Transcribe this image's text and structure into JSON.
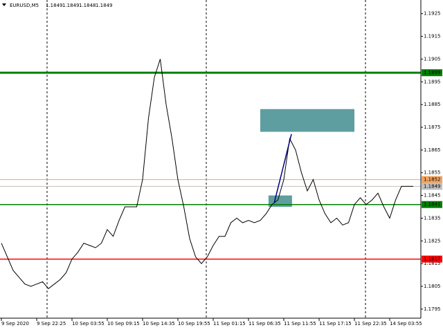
{
  "chart_data": {
    "type": "line",
    "title": "EURUSD,M5",
    "ohlc": [
      1.1849,
      1.1849,
      1.1848,
      1.1849
    ],
    "categories": [
      "9 Sep 2020",
      null,
      null,
      null,
      null,
      null,
      "9 Sep 22:25",
      null,
      null,
      null,
      null,
      null,
      "10 Sep 03:55",
      null,
      null,
      null,
      null,
      null,
      "10 Sep 09:15",
      null,
      null,
      null,
      null,
      null,
      "10 Sep 14:35",
      null,
      null,
      null,
      null,
      null,
      "10 Sep 19:55",
      null,
      null,
      null,
      null,
      null,
      "11 Sep 01:15",
      null,
      null,
      null,
      null,
      null,
      "11 Sep 06:35",
      null,
      null,
      null,
      null,
      null,
      "11 Sep 11:55",
      null,
      null,
      null,
      null,
      null,
      "11 Sep 17:15",
      null,
      null,
      null,
      null,
      null,
      "11 Sep 22:35",
      null,
      null,
      null,
      null,
      null,
      "14 Sep 03:55",
      null,
      null,
      null,
      null
    ],
    "values": [
      1.1824,
      1.1818,
      1.1812,
      1.1809,
      1.1806,
      1.1805,
      1.1806,
      1.1807,
      1.1804,
      1.1806,
      1.1808,
      1.1811,
      1.1817,
      1.182,
      1.1824,
      1.1823,
      1.1822,
      1.1824,
      1.183,
      1.1827,
      1.1834,
      1.184,
      1.184,
      1.184,
      1.1852,
      1.1879,
      1.1897,
      1.1905,
      1.1885,
      1.187,
      1.1852,
      1.184,
      1.1826,
      1.1818,
      1.1815,
      1.1818,
      1.1823,
      1.1827,
      1.1827,
      1.1833,
      1.1835,
      1.1833,
      1.1834,
      1.1833,
      1.1834,
      1.1837,
      1.1841,
      1.1843,
      1.1852,
      1.187,
      1.1865,
      1.1855,
      1.1847,
      1.1852,
      1.1843,
      1.1837,
      1.1833,
      1.1835,
      1.1832,
      1.1833,
      1.1841,
      1.1844,
      1.1841,
      1.1843,
      1.1846,
      1.184,
      1.1835,
      1.1843,
      1.1849,
      1.1849,
      1.1849
    ],
    "color": "#000000",
    "ylim": [
      1.1791,
      1.1931
    ],
    "yticks": [
      1.1925,
      1.1915,
      1.1905,
      1.1895,
      1.1885,
      1.1875,
      1.1865,
      1.1855,
      1.1845,
      1.1835,
      1.1825,
      1.1815,
      1.1805,
      1.1795
    ],
    "levels": [
      {
        "value": 1.1899,
        "color": "#008000"
      },
      {
        "value": 1.1852,
        "color": "#f4a460"
      },
      {
        "value": 1.1849,
        "color": "#c0c0c0"
      },
      {
        "value": 1.1841,
        "color": "#008000"
      },
      {
        "value": 1.1817,
        "color": "#ff0000"
      }
    ],
    "rectangles": [
      {
        "x": [
          44,
          60
        ],
        "y": [
          1.1883,
          1.1873
        ],
        "color": "#5f9ea0"
      },
      {
        "x": [
          45.4,
          49.4
        ],
        "y": [
          1.1845,
          1.184
        ],
        "color": "#5f9ea0"
      }
    ],
    "trendline": {
      "x": [
        46.4,
        49.3
      ],
      "y": [
        1.1842,
        1.1872
      ],
      "color": "#000080"
    }
  }
}
